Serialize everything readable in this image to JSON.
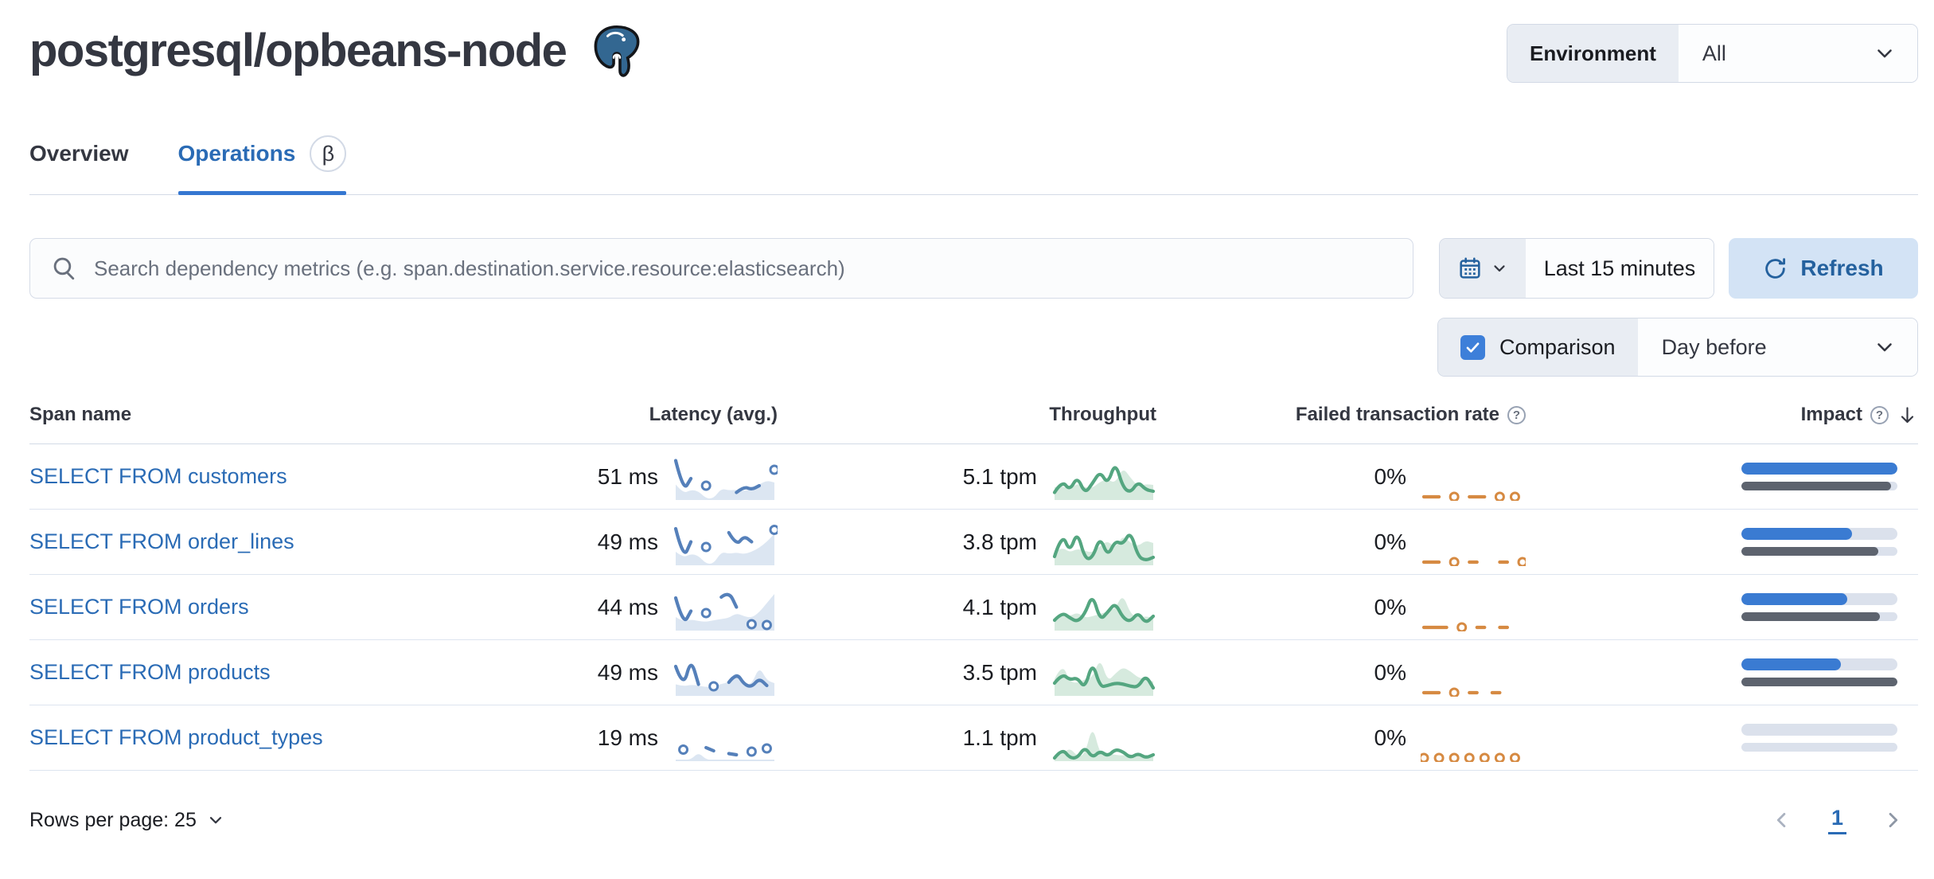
{
  "page": {
    "title": "postgresql/opbeans-node"
  },
  "header": {
    "environment_label": "Environment",
    "environment_value": "All"
  },
  "tabs": [
    {
      "label": "Overview",
      "active": false
    },
    {
      "label": "Operations",
      "active": true,
      "beta": "β"
    }
  ],
  "toolbar": {
    "search_placeholder": "Search dependency metrics (e.g. span.destination.service.resource:elasticsearch)",
    "time_range": "Last 15 minutes",
    "refresh_label": "Refresh",
    "comparison_label": "Comparison",
    "comparison_checked": true,
    "comparison_value": "Day before"
  },
  "table": {
    "col_span_name": "Span name",
    "col_latency": "Latency (avg.)",
    "col_throughput": "Throughput",
    "col_failed": "Failed transaction rate",
    "col_impact": "Impact",
    "sorted_by": "Impact",
    "sort_direction": "desc",
    "rows": [
      {
        "span_name": "SELECT FROM customers",
        "latency": "51 ms",
        "throughput": "5.1 tpm",
        "failed_rate": "0%",
        "impact_pct": 100,
        "impact_prev_pct": 96,
        "latency_spark": {
          "current": [
            95,
            18,
            50,
            null,
            32,
            null,
            null,
            null,
            15,
            30,
            22,
            32,
            null,
            72
          ],
          "comparison": [
            35,
            12,
            22,
            18,
            0,
            0,
            25,
            20,
            22,
            18,
            25,
            35,
            45,
            40
          ]
        },
        "throughput_spark": {
          "current": [
            15,
            45,
            20,
            55,
            12,
            38,
            68,
            35,
            92,
            28,
            14,
            42,
            22,
            18
          ],
          "comparison": [
            28,
            32,
            22,
            38,
            28,
            26,
            42,
            48,
            38,
            78,
            52,
            30,
            36,
            34
          ]
        },
        "failed_spark": {
          "current": [
            4,
            4,
            4,
            null,
            4,
            null,
            4,
            4,
            4,
            null,
            4,
            null,
            4,
            null
          ]
        }
      },
      {
        "span_name": "SELECT FROM order_lines",
        "latency": "49 ms",
        "throughput": "3.8 tpm",
        "failed_rate": "0%",
        "impact_pct": 71,
        "impact_prev_pct": 88,
        "latency_spark": {
          "current": [
            88,
            12,
            55,
            null,
            42,
            null,
            null,
            78,
            45,
            70,
            55,
            null,
            null,
            85
          ],
          "comparison": [
            30,
            15,
            25,
            20,
            0,
            0,
            30,
            25,
            28,
            24,
            30,
            40,
            55,
            75
          ]
        },
        "throughput_spark": {
          "current": [
            18,
            78,
            28,
            82,
            12,
            14,
            68,
            18,
            58,
            48,
            82,
            18,
            8,
            16
          ],
          "comparison": [
            30,
            42,
            28,
            38,
            32,
            28,
            44,
            58,
            38,
            72,
            52,
            44,
            58,
            52
          ]
        },
        "failed_spark": {
          "current": [
            4,
            4,
            4,
            null,
            4,
            null,
            4,
            4,
            null,
            null,
            4,
            4,
            null,
            4
          ]
        }
      },
      {
        "span_name": "SELECT FROM orders",
        "latency": "44 ms",
        "throughput": "4.1 tpm",
        "failed_rate": "0%",
        "impact_pct": 68,
        "impact_prev_pct": 89,
        "latency_spark": {
          "current": [
            78,
            10,
            45,
            null,
            40,
            null,
            80,
            95,
            55,
            null,
            12,
            null,
            10,
            null
          ],
          "comparison": [
            30,
            18,
            24,
            20,
            18,
            22,
            25,
            28,
            40,
            32,
            28,
            42,
            65,
            88
          ]
        },
        "throughput_spark": {
          "current": [
            22,
            42,
            28,
            18,
            38,
            88,
            22,
            42,
            66,
            28,
            18,
            42,
            14,
            32
          ],
          "comparison": [
            28,
            38,
            32,
            42,
            28,
            32,
            38,
            44,
            52,
            88,
            38,
            28,
            32,
            28
          ]
        },
        "failed_spark": {
          "current": [
            4,
            4,
            4,
            4,
            null,
            4,
            null,
            4,
            4,
            null,
            4,
            4,
            null,
            null
          ]
        }
      },
      {
        "span_name": "SELECT FROM products",
        "latency": "49 ms",
        "throughput": "3.5 tpm",
        "failed_rate": "0%",
        "impact_pct": 64,
        "impact_prev_pct": 100,
        "latency_spark": {
          "current": [
            70,
            15,
            90,
            25,
            null,
            20,
            null,
            30,
            55,
            25,
            18,
            40,
            22,
            null
          ],
          "comparison": [
            25,
            20,
            24,
            22,
            18,
            20,
            26,
            30,
            60,
            28,
            24,
            70,
            35,
            28
          ]
        },
        "throughput_spark": {
          "current": [
            28,
            52,
            36,
            42,
            14,
            82,
            18,
            22,
            28,
            26,
            20,
            18,
            48,
            16
          ],
          "comparison": [
            38,
            78,
            32,
            28,
            38,
            42,
            92,
            32,
            52,
            68,
            58,
            42,
            38,
            32
          ]
        },
        "failed_spark": {
          "current": [
            4,
            4,
            4,
            null,
            4,
            null,
            4,
            4,
            null,
            4,
            4,
            null,
            null,
            null
          ]
        }
      },
      {
        "span_name": "SELECT FROM product_types",
        "latency": "19 ms",
        "throughput": "1.1 tpm",
        "failed_rate": "0%",
        "impact_pct": 0,
        "impact_prev_pct": 0,
        "latency_spark": {
          "current": [
            null,
            25,
            null,
            null,
            30,
            22,
            null,
            15,
            12,
            null,
            20,
            null,
            28,
            null
          ],
          "comparison": [
            0,
            0,
            0,
            18,
            0,
            0,
            0,
            0,
            0,
            0,
            0,
            0,
            0,
            0
          ]
        },
        "throughput_spark": {
          "current": [
            4,
            28,
            4,
            4,
            32,
            4,
            22,
            8,
            26,
            20,
            4,
            16,
            4,
            12
          ],
          "comparison": [
            8,
            12,
            30,
            8,
            12,
            88,
            12,
            16,
            12,
            10,
            14,
            8,
            12,
            10
          ]
        },
        "failed_spark": {
          "current": [
            4,
            null,
            4,
            null,
            4,
            null,
            4,
            null,
            4,
            null,
            4,
            null,
            4,
            null
          ]
        }
      }
    ]
  },
  "footer": {
    "rows_per_page_label": "Rows per page: 25",
    "page": "1"
  },
  "colors": {
    "link": "#2a6bb5",
    "tab_underline": "#3577d1",
    "refresh_bg": "#d3e3f5",
    "refresh_text": "#24619e",
    "label_bg": "#e9edf3",
    "border": "#d3dae6",
    "text": "#343741",
    "subdued": "#69707d",
    "checkbox_blue": "#3d7fd9",
    "spark_blue": "#5580ba",
    "spark_blue_fill": "#dce6f2",
    "spark_green": "#54a680",
    "spark_green_fill": "#d6eade",
    "spark_orange": "#d68a42",
    "impact_blue": "#3a7bd2",
    "impact_gray": "#5d636e",
    "impact_track": "#dbe1ec",
    "postgres_blue": "#336791"
  }
}
